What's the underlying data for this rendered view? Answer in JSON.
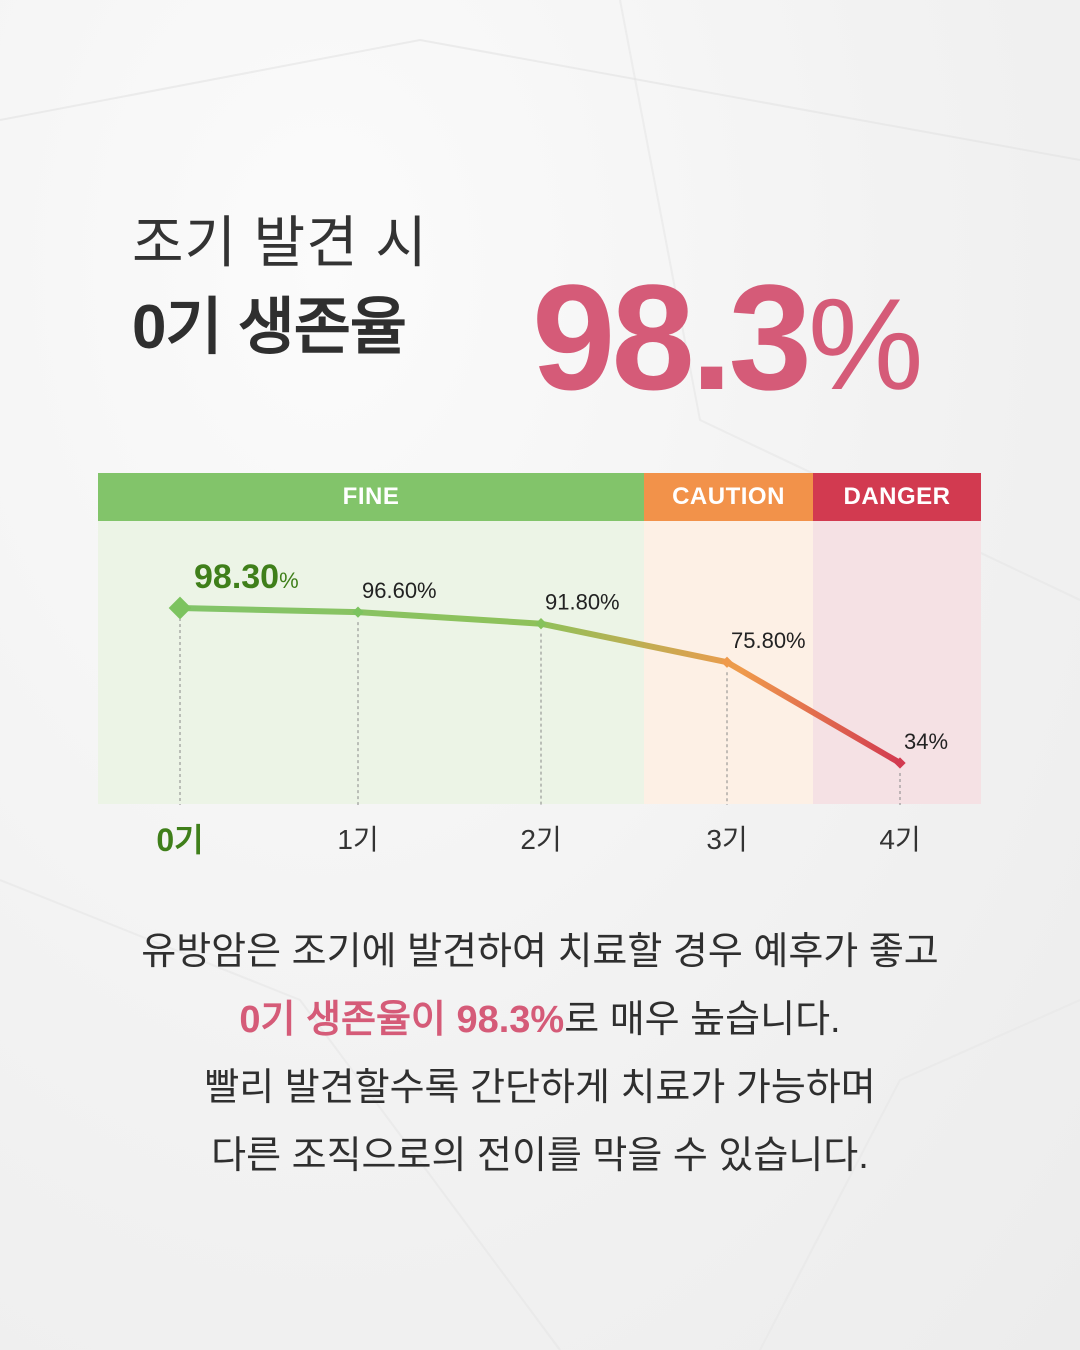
{
  "headline": {
    "line1": "조기 발견 시",
    "line2": "0기 생존율",
    "big_value": "98.3",
    "big_unit": "%"
  },
  "zones": [
    {
      "label": "FINE",
      "color": "#82c46a",
      "bg": "#ecf4e6"
    },
    {
      "label": "CAUTION",
      "color": "#f2924a",
      "bg": "#fdf0e5"
    },
    {
      "label": "DANGER",
      "color": "#d23a50",
      "bg": "#f5e1e4"
    }
  ],
  "chart_data": {
    "type": "line",
    "categories": [
      "0기",
      "1기",
      "2기",
      "3기",
      "4기"
    ],
    "values": [
      98.3,
      96.6,
      91.8,
      75.8,
      34
    ],
    "data_labels": [
      "98.30",
      "96.60%",
      "91.80%",
      "75.80%",
      "34%"
    ],
    "first_label_unit": "%",
    "ylim": [
      30,
      100
    ],
    "grid": false,
    "point_colors": [
      "#7cc35f",
      "#7cc35f",
      "#86c25c",
      "#ef9a4c",
      "#d23a50"
    ]
  },
  "body": {
    "line1": "유방암은 조기에 발견하여 치료할 경우 예후가 좋고",
    "line2_highlight": "0기 생존율이 98.3%",
    "line2_rest": "로 매우 높습니다.",
    "line3": "빨리 발견할수록 간단하게 치료가 가능하며",
    "line4": "다른 조직으로의 전이를 막을 수 있습니다."
  }
}
